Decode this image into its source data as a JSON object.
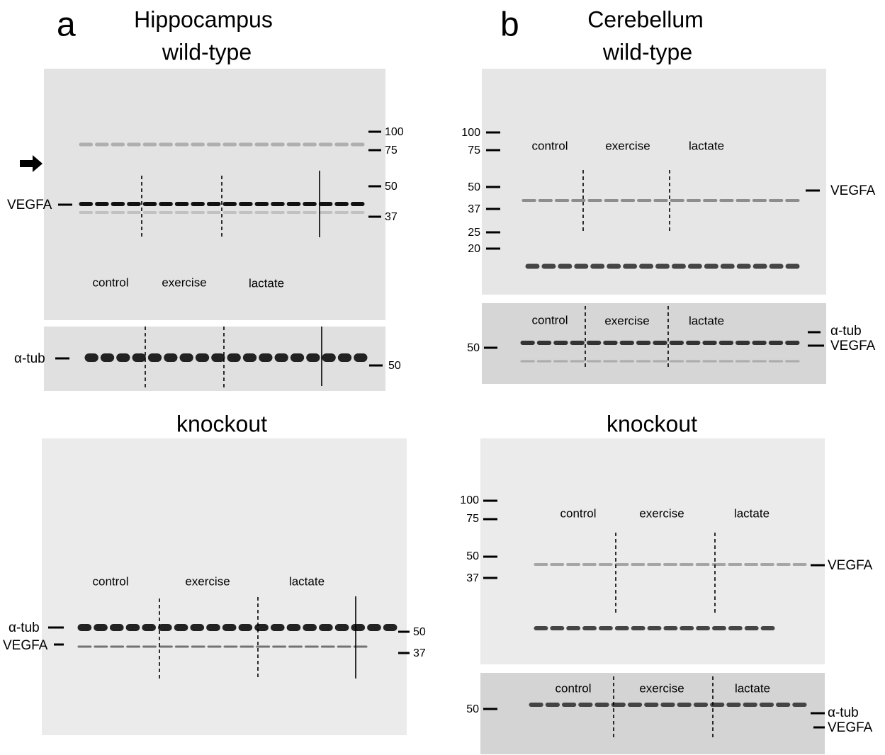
{
  "panel_a": {
    "letter": "a",
    "title": "Hippocampus",
    "wild_type": {
      "heading": "wild-type",
      "main_blot": {
        "markers": [
          100,
          75,
          50,
          37
        ],
        "band_label": "VEGFA",
        "groups": [
          "control",
          "exercise",
          "lactate"
        ]
      },
      "loading_blot": {
        "band_label": "α-tub",
        "markers": [
          50
        ]
      }
    },
    "knockout": {
      "heading": "knockout",
      "groups": [
        "control",
        "exercise",
        "lactate"
      ],
      "band_labels": [
        "α-tub",
        "VEGFA"
      ],
      "markers": [
        50,
        37
      ]
    }
  },
  "panel_b": {
    "letter": "b",
    "title": "Cerebellum",
    "wild_type": {
      "heading": "wild-type",
      "main_blot": {
        "markers": [
          100,
          75,
          50,
          37,
          25,
          20
        ],
        "band_label": "VEGFA",
        "groups": [
          "control",
          "exercise",
          "lactate"
        ]
      },
      "loading_blot": {
        "markers": [
          50
        ],
        "band_labels": [
          "α-tub",
          "VEGFA"
        ],
        "groups": [
          "control",
          "exercise",
          "lactate"
        ]
      }
    },
    "knockout": {
      "heading": "knockout",
      "main_blot": {
        "markers": [
          100,
          75,
          50,
          37
        ],
        "band_label": "VEGFA",
        "groups": [
          "control",
          "exercise",
          "lactate"
        ]
      },
      "loading_blot": {
        "markers": [
          50
        ],
        "band_labels": [
          "α-tub",
          "VEGFA"
        ],
        "groups": [
          "control",
          "exercise",
          "lactate"
        ]
      }
    }
  }
}
